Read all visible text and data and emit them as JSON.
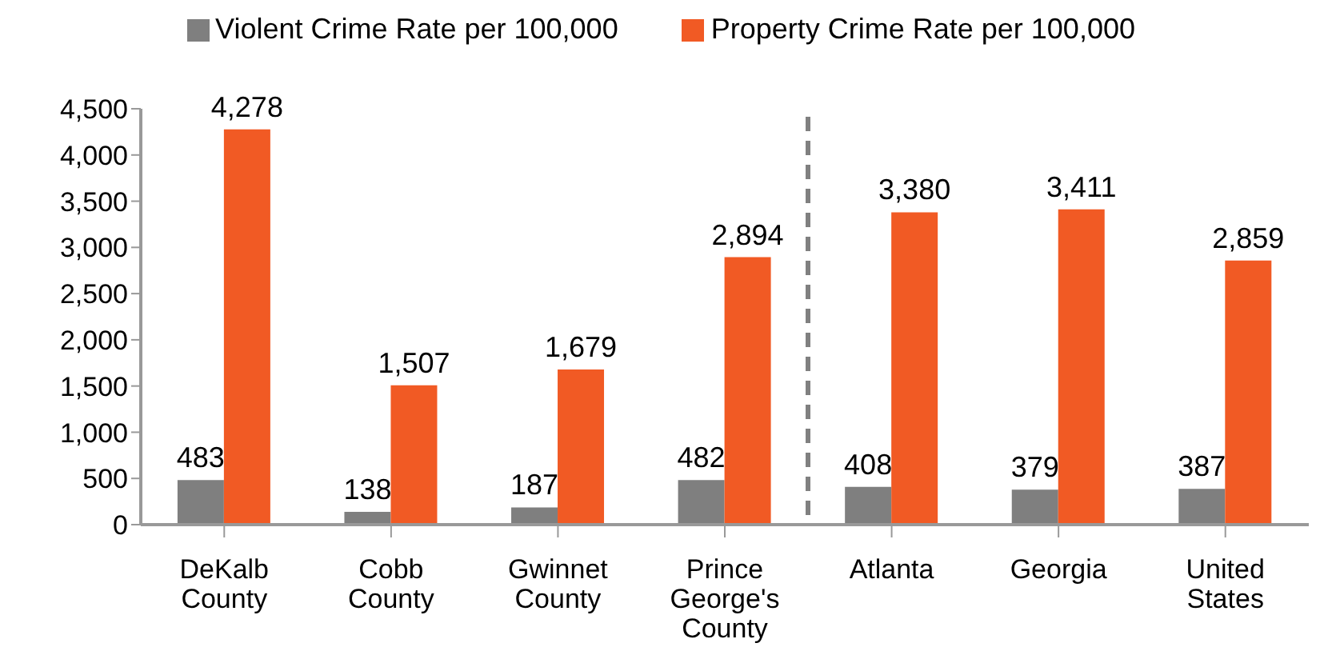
{
  "chart_data": {
    "type": "bar",
    "categories": [
      "DeKalb County",
      "Cobb County",
      "Gwinnet County",
      "Prince George's County",
      "Atlanta",
      "Georgia",
      "United States"
    ],
    "series": [
      {
        "name": "Violent Crime Rate per 100,000",
        "color": "#7f7f7f",
        "values": [
          483,
          138,
          187,
          482,
          408,
          379,
          387
        ],
        "value_labels": [
          "483",
          "138",
          "187",
          "482",
          "408",
          "379",
          "387"
        ]
      },
      {
        "name": "Property Crime Rate per 100,000",
        "color": "#f15a24",
        "values": [
          4278,
          1507,
          1679,
          2894,
          3380,
          3411,
          2859
        ],
        "value_labels": [
          "4,278",
          "1,507",
          "1,679",
          "2,894",
          "3,380",
          "3,411",
          "2,859"
        ]
      }
    ],
    "ylim": [
      0,
      4500
    ],
    "yticks": [
      0,
      500,
      {
        "value": 1000,
        "label": "1,000"
      },
      {
        "value": 1500,
        "label": "1,500"
      },
      {
        "value": 2000,
        "label": "2,000"
      },
      {
        "value": 2500,
        "label": "2,500"
      },
      {
        "value": 3000,
        "label": "3,000"
      },
      {
        "value": 3500,
        "label": "3,500"
      },
      {
        "value": 4000,
        "label": "4,000"
      },
      {
        "value": 4500,
        "label": "4,500"
      }
    ],
    "grid": false,
    "legend": "top"
  }
}
